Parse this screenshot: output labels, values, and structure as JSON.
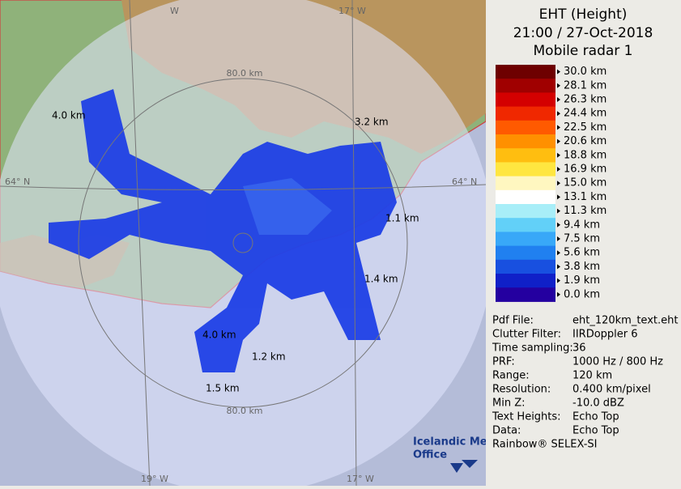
{
  "header": {
    "title": "EHT (Height)",
    "time": "21:00 / 27-Oct-2018",
    "radar": "Mobile radar 1"
  },
  "legend": {
    "items": [
      {
        "label": "30.0 km",
        "color": "#6e0000"
      },
      {
        "label": "28.1 km",
        "color": "#a00000"
      },
      {
        "label": "26.3 km",
        "color": "#d40000"
      },
      {
        "label": "24.4 km",
        "color": "#f02800"
      },
      {
        "label": "22.5 km",
        "color": "#ff5a00"
      },
      {
        "label": "20.6 km",
        "color": "#ff9000"
      },
      {
        "label": "18.8 km",
        "color": "#ffbe10"
      },
      {
        "label": "16.9 km",
        "color": "#ffe640"
      },
      {
        "label": "15.0 km",
        "color": "#fff7c0"
      },
      {
        "label": "13.1 km",
        "color": "#ffffff"
      },
      {
        "label": "11.3 km",
        "color": "#a8eef8"
      },
      {
        "label": "9.4 km",
        "color": "#62d0f8"
      },
      {
        "label": "7.5 km",
        "color": "#38a8f8"
      },
      {
        "label": "5.6 km",
        "color": "#2080f0"
      },
      {
        "label": "3.8 km",
        "color": "#1850e0"
      },
      {
        "label": "1.9 km",
        "color": "#1020c8"
      },
      {
        "label": "0.0 km",
        "color": "#2400a0"
      }
    ]
  },
  "info": {
    "rows": [
      [
        "Pdf File:",
        "eht_120km_text.eht"
      ],
      [
        "Clutter Filter:",
        "IIRDoppler 6"
      ],
      [
        "Time sampling:",
        "36"
      ],
      [
        "PRF:",
        "1000 Hz / 800 Hz"
      ],
      [
        "Range:",
        "120 km"
      ],
      [
        "Resolution:",
        "0.400 km/pixel"
      ],
      [
        "Min Z:",
        "-10.0 dBZ"
      ],
      [
        "Text Heights:",
        "Echo Top"
      ],
      [
        "Data:",
        "Echo Top"
      ]
    ],
    "footer": "Rainbow® SELEX-SI"
  },
  "map": {
    "labels": {
      "ring_top": "80.0 km",
      "ring_bottom": "80.0 km",
      "lat_left": "64° N",
      "lat_right": "64° N",
      "lon_top_left": "W",
      "lon_top_right": "17° W",
      "lon_bottom_left": "19° W",
      "lon_bottom_right": "17° W"
    },
    "echo_tops": [
      "4.0 km",
      "3.2 km",
      "1.1 km",
      "1.4 km",
      "4.0 km",
      "1.2 km",
      "1.5 km"
    ],
    "logo": [
      "Icelandic Met",
      "Office"
    ]
  }
}
